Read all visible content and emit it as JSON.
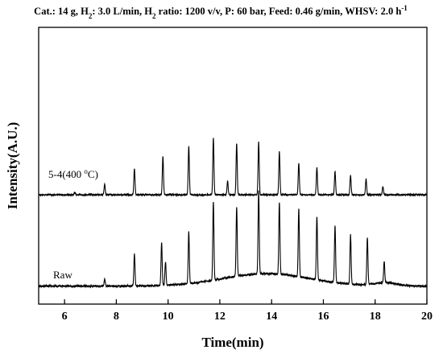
{
  "chart_data": {
    "type": "line",
    "title_parts": [
      {
        "t": "Cat.: 14 g, H"
      },
      {
        "t": "2",
        "sub": true
      },
      {
        "t": ": 3.0 L/min, H"
      },
      {
        "t": "2",
        "sub": true
      },
      {
        "t": " ratio: 1200 v/v, P: 60 bar, Feed: 0.46 g/min, WHSV: 2.0 h"
      },
      {
        "t": "-1",
        "sup": true
      }
    ],
    "xlabel": "Time(min)",
    "ylabel": "Intensity(A.U.)",
    "xlim": [
      5,
      20
    ],
    "ylim": [
      0,
      100
    ],
    "x_ticks": [
      6,
      8,
      10,
      12,
      14,
      16,
      18,
      20
    ],
    "y_ticks_shown": false,
    "series": [
      {
        "name_parts": [
          {
            "t": "5-4(400 "
          },
          {
            "t": "o",
            "sup": true
          },
          {
            "t": "C)"
          }
        ],
        "baseline": 39.5,
        "color": "#000000",
        "noise": 0.25,
        "peaks": [
          [
            6.4,
            1.0
          ],
          [
            7.55,
            4.0
          ],
          [
            8.7,
            9.5
          ],
          [
            9.8,
            14.0
          ],
          [
            10.8,
            17.5
          ],
          [
            11.75,
            20.5
          ],
          [
            12.3,
            5.0
          ],
          [
            12.65,
            18.5
          ],
          [
            13.5,
            19.0
          ],
          [
            14.3,
            15.5
          ],
          [
            15.05,
            11.5
          ],
          [
            15.75,
            10.0
          ],
          [
            16.45,
            8.5
          ],
          [
            17.05,
            7.0
          ],
          [
            17.65,
            5.8
          ],
          [
            18.3,
            3.0
          ]
        ]
      },
      {
        "name_parts": [
          {
            "t": "Raw"
          }
        ],
        "baseline": 6.5,
        "color": "#000000",
        "noise": 0.35,
        "hump": {
          "center": 13.8,
          "width": 2.4,
          "height": 4.5
        },
        "peaks": [
          [
            7.55,
            2.5
          ],
          [
            8.7,
            11.5
          ],
          [
            9.75,
            15.5
          ],
          [
            9.9,
            8.5
          ],
          [
            10.8,
            18.5
          ],
          [
            11.75,
            28.5
          ],
          [
            12.65,
            25.0
          ],
          [
            13.5,
            30.0
          ],
          [
            14.3,
            26.0
          ],
          [
            15.05,
            24.5
          ],
          [
            15.75,
            23.0
          ],
          [
            16.45,
            20.5
          ],
          [
            17.05,
            18.0
          ],
          [
            17.7,
            17.0
          ],
          [
            18.35,
            7.5
          ]
        ]
      }
    ]
  }
}
